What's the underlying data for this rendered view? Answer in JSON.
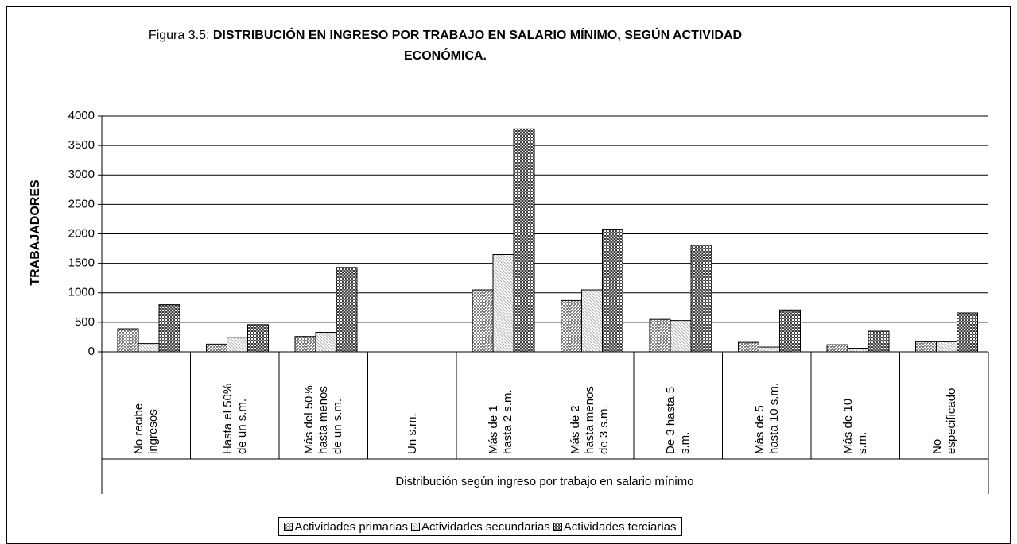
{
  "chart_data": {
    "type": "bar",
    "title": {
      "label": "Figura 3.5:",
      "text": "DISTRIBUCIÓN EN INGRESO POR TRABAJO EN SALARIO MÍNIMO, SEGÚN ACTIVIDAD ECONÓMICA."
    },
    "y_label": "TRABAJADORES",
    "x_label": "Distribución según ingreso por trabajo en salario mínimo",
    "categories": [
      "No recibe ingresos",
      "Hasta el 50% de un s.m.",
      "Más del 50% hasta menos de un s.m.",
      "Un s.m.",
      "Más de 1 hasta 2 s.m.",
      "Más de 2 hasta menos de 3 s.m.",
      "De 3 hasta 5 s.m.",
      "Más de 5 hasta 10 s.m.",
      "Más de 10 s.m.",
      "No especificado"
    ],
    "series": [
      {
        "name": "Actividades primarias",
        "color": "#808080",
        "values": [
          390,
          130,
          260,
          0,
          1050,
          870,
          550,
          160,
          120,
          170
        ]
      },
      {
        "name": "Actividades secundarias",
        "color": "#b0b0b0",
        "values": [
          140,
          240,
          330,
          0,
          1650,
          1050,
          530,
          80,
          60,
          170
        ]
      },
      {
        "name": "Actividades terciarias",
        "color": "#404040",
        "values": [
          800,
          460,
          1430,
          0,
          3780,
          2080,
          1810,
          710,
          350,
          660
        ]
      }
    ],
    "ylim": [
      0,
      4000
    ],
    "yticks": [
      0,
      500,
      1000,
      1500,
      2000,
      2500,
      3000,
      3500,
      4000
    ],
    "grid": true,
    "legend": "bottom"
  }
}
